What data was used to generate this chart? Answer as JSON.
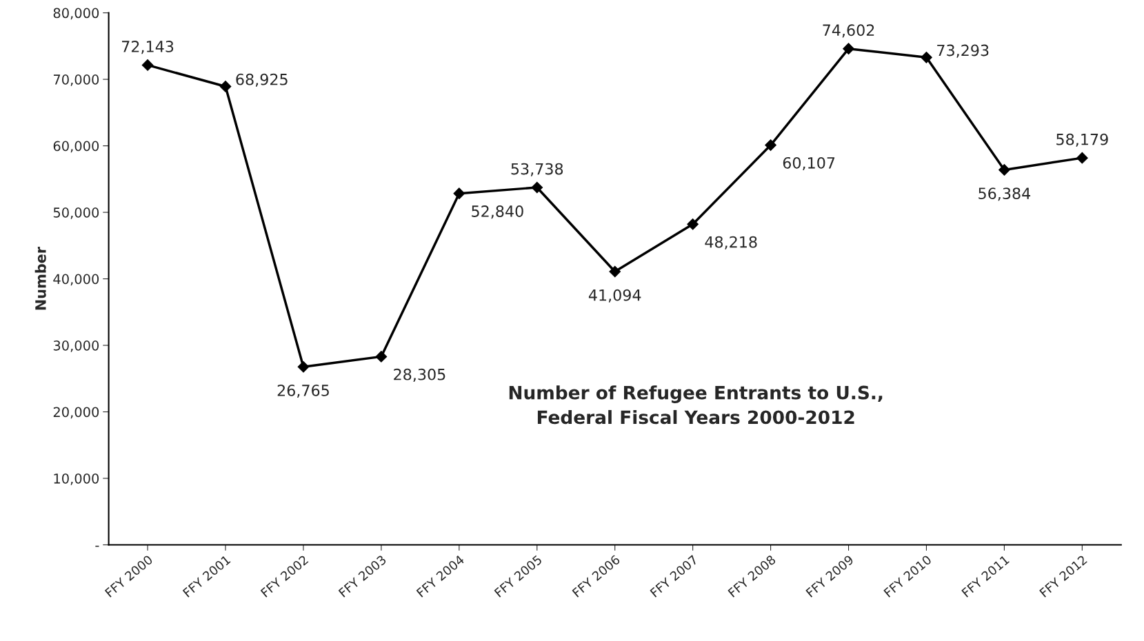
{
  "chart_data": {
    "type": "line",
    "title": "Number of Refugee Entrants to U.S.,\nFederal Fiscal Years 2000-2012",
    "ylabel": "Number",
    "categories": [
      "FFY 2000",
      "FFY 2001",
      "FFY 2002",
      "FFY 2003",
      "FFY 2004",
      "FFY 2005",
      "FFY 2006",
      "FFY 2007",
      "FFY 2008",
      "FFY 2009",
      "FFY 2010",
      "FFY 2011",
      "FFY 2012"
    ],
    "series": [
      {
        "color": "#000000",
        "values": [
          72143,
          68925,
          26765,
          28305,
          52840,
          53738,
          41094,
          48218,
          60107,
          74602,
          73293,
          56384,
          58179
        ],
        "value_labels": [
          "72,143",
          "68,925",
          "26,765",
          "28,305",
          "52,840",
          "53,738",
          "41,094",
          "48,218",
          "60,107",
          "74,602",
          "73,293",
          "56,384",
          "58,179"
        ]
      }
    ],
    "ylim": [
      0,
      80000
    ],
    "yticks": [
      {
        "value": 0,
        "label": "-"
      },
      {
        "value": 10000,
        "label": "10,000"
      },
      {
        "value": 20000,
        "label": "20,000"
      },
      {
        "value": 30000,
        "label": "30,000"
      },
      {
        "value": 40000,
        "label": "40,000"
      },
      {
        "value": 50000,
        "label": "50,000"
      },
      {
        "value": 60000,
        "label": "60,000"
      },
      {
        "value": 70000,
        "label": "70,000"
      },
      {
        "value": 80000,
        "label": "80,000"
      }
    ],
    "marker": "diamond",
    "line_style": "solid",
    "grid": false,
    "legend": false
  }
}
